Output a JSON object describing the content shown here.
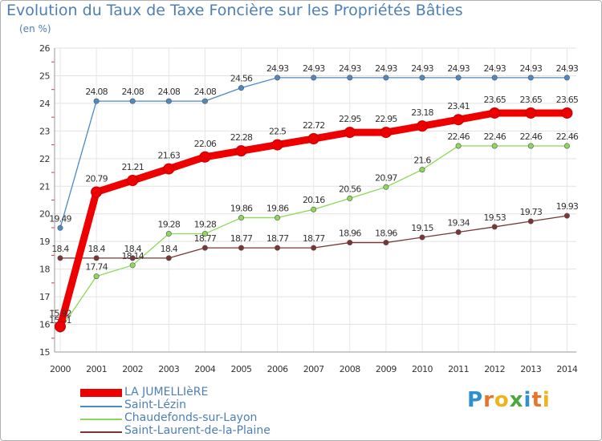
{
  "chart_data": {
    "type": "line",
    "title": "Evolution du Taux de Taxe Foncière sur les Propriétés Bâties",
    "subtitle": "(en %)",
    "xlabel": "",
    "ylabel": "",
    "ylim": [
      15,
      26
    ],
    "yticks": [
      "15",
      "16",
      "17",
      "18",
      "19",
      "20",
      "21",
      "22",
      "23",
      "24",
      "25",
      "26"
    ],
    "x": [
      "2000",
      "2001",
      "2002",
      "2003",
      "2004",
      "2005",
      "2006",
      "2007",
      "2008",
      "2009",
      "2010",
      "2011",
      "2012",
      "2013",
      "2014"
    ],
    "grid": true,
    "series": [
      {
        "name": "Saint-Lézin",
        "color": "#4b8ac4",
        "values": [
          19.49,
          24.08,
          24.08,
          24.08,
          24.08,
          24.56,
          24.93,
          24.93,
          24.93,
          24.93,
          24.93,
          24.93,
          24.93,
          24.93,
          24.93
        ],
        "labels": [
          "19.49",
          "24.08",
          "24.08",
          "24.08",
          "24.08",
          "24.56",
          "24.93",
          "24.93",
          "24.93",
          "24.93",
          "24.93",
          "24.93",
          "24.93",
          "24.93",
          "24.93"
        ]
      },
      {
        "name": "Chaudefonds-sur-Layon",
        "color": "#8cd85a",
        "values": [
          15.81,
          17.74,
          18.14,
          19.28,
          19.28,
          19.86,
          19.86,
          20.16,
          20.56,
          20.97,
          21.6,
          22.46,
          22.46,
          22.46,
          22.46
        ],
        "labels": [
          "15.81",
          "17.74",
          "18.14",
          "19.28",
          "19.28",
          "19.86",
          "19.86",
          "20.16",
          "20.56",
          "20.97",
          "21.6",
          "22.46",
          "22.46",
          "22.46",
          "22.46"
        ]
      },
      {
        "name": "Saint-Laurent-de-la-Plaine",
        "color": "#7a3535",
        "values": [
          18.4,
          18.4,
          18.4,
          18.4,
          18.77,
          18.77,
          18.77,
          18.77,
          18.96,
          18.96,
          19.15,
          19.34,
          19.53,
          19.73,
          19.93
        ],
        "labels": [
          "18.4",
          "18.4",
          "18.4",
          "18.4",
          "18.77",
          "18.77",
          "18.77",
          "18.77",
          "18.96",
          "18.96",
          "19.15",
          "19.34",
          "19.53",
          "19.73",
          "19.93"
        ]
      },
      {
        "name": "LA JUMELLIèRE",
        "color": "#ee0000",
        "values": [
          15.92,
          20.79,
          21.21,
          21.63,
          22.06,
          22.28,
          22.5,
          22.72,
          22.95,
          22.95,
          23.18,
          23.41,
          23.65,
          23.65,
          23.65
        ],
        "labels": [
          "15.92",
          "20.79",
          "21.21",
          "21.63",
          "22.06",
          "22.28",
          "22.5",
          "22.72",
          "22.95",
          "22.95",
          "23.18",
          "23.41",
          "23.65",
          "23.65",
          "23.65"
        ]
      }
    ],
    "legend": [
      "LA JUMELLIèRE",
      "Saint-Lézin",
      "Chaudefonds-sur-Layon",
      "Saint-Laurent-de-la-Plaine"
    ]
  },
  "brand": {
    "text": "Proxiti",
    "colors": [
      "#2f8fd0",
      "#e8742a",
      "#f2b21c",
      "#4aa83c",
      "#2f8fd0",
      "#e8742a",
      "#f2b21c"
    ]
  }
}
